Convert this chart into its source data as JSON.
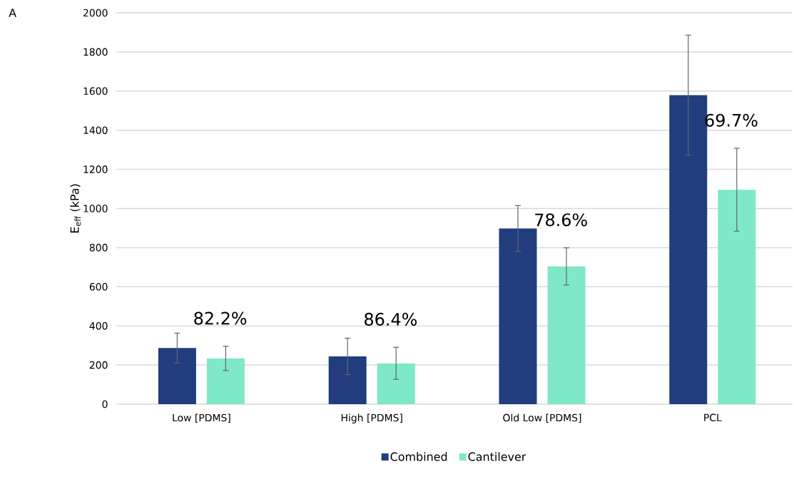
{
  "chart_data": {
    "type": "bar",
    "ylabel": "E$_{eff}$ (kPa)",
    "categories": [
      "Low [PDMS]",
      "High [PDMS]",
      "Old Low [PDMS]",
      "PCL"
    ],
    "series": [
      {
        "name": "Combined",
        "color": "#213d7e",
        "values": [
          287,
          244,
          898,
          1579
        ],
        "errors": [
          76,
          93,
          117,
          307
        ]
      },
      {
        "name": "Cantilever",
        "color": "#7fe8c8",
        "values": [
          234,
          209,
          704,
          1096
        ],
        "errors": [
          62,
          82,
          95,
          212
        ]
      }
    ],
    "ylim": [
      0,
      2000
    ],
    "yticks": [
      0,
      200,
      400,
      600,
      800,
      1000,
      1200,
      1400,
      1600,
      1800,
      2000
    ],
    "grid": "y",
    "legend": "bottom",
    "annotations": [
      "A",
      "82.2%",
      "86.4%",
      "78.6%",
      "69.7%"
    ]
  }
}
